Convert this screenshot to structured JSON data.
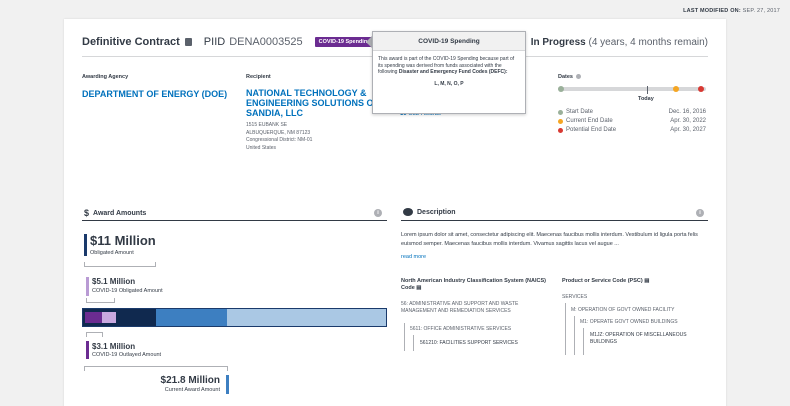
{
  "header": {
    "modified_label": "LAST MODIFIED ON:",
    "modified_date": "SEP. 27, 2017",
    "title": "Definitive Contract",
    "piid_label": "PIID",
    "piid_value": "DENA0003525",
    "covid_tag": "COVID-19 Spending",
    "status": "In Progress",
    "status_detail": "(4 years, 4 months remain)"
  },
  "tooltip": {
    "title": "COVID-19 Spending",
    "body_1": "This award is part of the COVID-19 Spending because part of its spending was derived from funds associated with the following ",
    "body_bold": "Disaster and Emergency Fund Codes (DEFC):",
    "codes": "L, M, N, O, P"
  },
  "agency": {
    "label": "Awarding Agency",
    "name": "DEPARTMENT OF ENERGY (DOE)"
  },
  "recipient": {
    "label": "Recipient",
    "name": "NATIONAL TECHNOLOGY & ENGINEERING SOLUTIONS OF SANDIA, LLC",
    "addr1": "1515 EUBANK SE",
    "addr2": "ALBUQUERQUE, NM 87123",
    "addr3": "Congressional District: NM-01",
    "addr4": "United States"
  },
  "subawards": {
    "count": "10",
    "label": "Sub-Awards"
  },
  "dates": {
    "label": "Dates",
    "today": "Today",
    "start_label": "Start Date",
    "start": "Dec. 16, 2016",
    "current_label": "Current End Date",
    "current": "Apr. 30, 2022",
    "potential_label": "Potential End Date",
    "potential": "Apr. 30, 2027",
    "colors": {
      "start": "#9ab09a",
      "current": "#f5a623",
      "potential": "#d83933"
    }
  },
  "amounts": {
    "title": "Award Amounts",
    "obligated": "$11 Million",
    "obligated_label": "Obligated Amount",
    "covid_obligated": "$5.1 Million",
    "covid_obligated_label": "COVID-19 Obligated Amount",
    "covid_outlayed": "$3.1 Million",
    "covid_outlayed_label": "COVID-19 Outlayed Amount",
    "current": "$21.8 Million",
    "current_label": "Current Award Amount"
  },
  "description": {
    "title": "Description",
    "text": "Lorem ipsum dolor sit amet, consectetur adipiscing elit. Maecenas faucibus mollis interdum. Vestibulum id ligula porta felis euismod semper. Maecenas faucibus mollis interdum. Vivamus sagittis lacus vel augue ...",
    "read_more": "read more",
    "naics_label": "North American Industry Classification System (NAICS) Code",
    "naics_1": "56: ADMINISTRATIVE AND SUPPORT AND WASTE MANAGEMENT AND REMEDIATION SERVICES",
    "naics_2": "5611: OFFICE ADMINISTRATIVE SERVICES",
    "naics_3": "561210: FACILITIES SUPPORT SERVICES",
    "psc_label": "Product or Service Code (PSC)",
    "psc_1": "SERVICES",
    "psc_2": "M: OPERATION OF GOVT OWNED FACILITY",
    "psc_3": "M1: OPERATE GOVT OWNED BUILDINGS",
    "psc_4": "M1JZ: OPERATION OF MISCELLANEOUS BUILDINGS"
  }
}
